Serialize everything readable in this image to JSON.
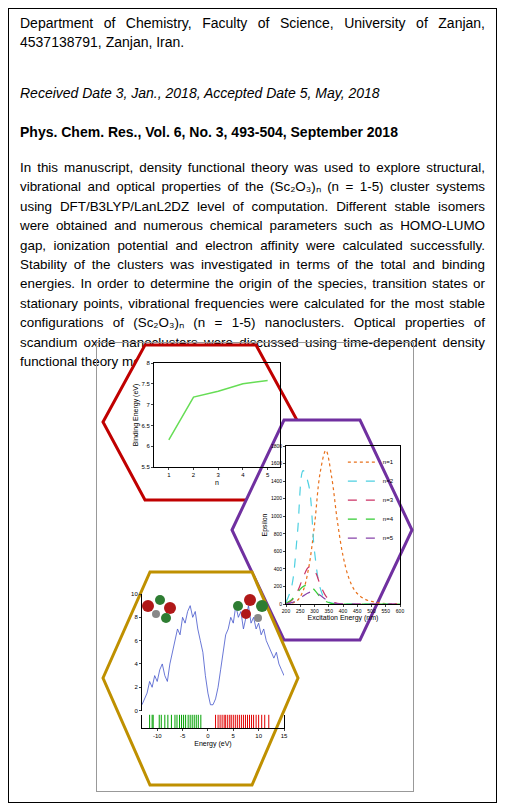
{
  "document": {
    "affiliation": "Department of Chemistry, Faculty of Science, University of Zanjan, 4537138791, Zanjan, Iran.",
    "dates": "Received Date 3, Jan., 2018, Accepted Date 5, May, 2018",
    "journal": "Phys. Chem. Res., Vol. 6, No. 3, 493-504, September 2018",
    "abstract": "In this manuscript, density functional theory was used to explore structural, vibrational and optical properties of the (Sc₂O₃)ₙ (n = 1-5) cluster systems using DFT/B3LYP/LanL2DZ level of computation. Different stable isomers were obtained and numerous chemical parameters such as HOMO-LUMO gap, ionization potential and electron affinity were calculated successfully. Stability of the clusters was investigated in terms of the total and binding energies. In order to determine the origin of the species, transition states or stationary points, vibrational frequencies were calculated for the most stable configurations of (Sc₂O₃)ₙ (n = 1-5) nanoclusters. Optical properties of scandium oxide nanoclusters were discussed  using time-dependent density functional theory methods."
  },
  "chart_data": [
    {
      "type": "line",
      "x_label": "n",
      "y_label": "Binding Energy (eV)",
      "x": [
        1,
        2,
        3,
        4,
        5
      ],
      "values": [
        6.15,
        7.18,
        7.32,
        7.5,
        7.58
      ],
      "color": "#66dd55",
      "marker": "none",
      "xlim": [
        0.4,
        5.5
      ],
      "xticks": [
        1,
        2,
        3,
        4,
        5
      ],
      "ylim": [
        5.5,
        8
      ],
      "yticks": [
        5.5,
        6,
        6.5,
        7,
        7.5,
        8
      ],
      "grid": false
    },
    {
      "type": "line",
      "x_label": "Excitation Energy (nm)",
      "y_label": "Epsilon",
      "x": [
        200,
        220,
        240,
        260,
        280,
        300,
        320,
        340,
        360,
        380,
        400,
        420,
        440,
        460,
        480,
        500,
        520,
        540,
        560,
        580,
        600
      ],
      "series": [
        {
          "name": "n=1",
          "color": "#e8711c",
          "line_style": "dot",
          "values": [
            0,
            10,
            40,
            150,
            420,
            900,
            1500,
            1750,
            1450,
            950,
            550,
            300,
            160,
            90,
            50,
            30,
            15,
            8,
            4,
            2,
            0
          ]
        },
        {
          "name": "n=2",
          "color": "#4dd0e1",
          "line_style": "dash",
          "values": [
            20,
            200,
            800,
            1520,
            1350,
            600,
            180,
            40,
            10,
            0,
            0,
            0,
            0,
            0,
            0,
            0,
            0,
            0,
            0,
            0,
            0
          ]
        },
        {
          "name": "n=3",
          "color": "#cc3366",
          "line_style": "dash",
          "values": [
            5,
            40,
            140,
            300,
            420,
            380,
            220,
            90,
            30,
            8,
            2,
            0,
            0,
            0,
            0,
            0,
            0,
            0,
            0,
            0,
            0
          ]
        },
        {
          "name": "n=4",
          "color": "#33cc33",
          "line_style": "dash",
          "values": [
            10,
            50,
            130,
            200,
            215,
            160,
            80,
            30,
            8,
            2,
            0,
            0,
            0,
            0,
            0,
            0,
            0,
            0,
            0,
            0,
            0
          ]
        },
        {
          "name": "n=5",
          "color": "#8844aa",
          "line_style": "dash",
          "values": [
            2,
            15,
            45,
            90,
            130,
            140,
            100,
            50,
            18,
            5,
            1,
            0,
            0,
            0,
            0,
            0,
            0,
            0,
            0,
            0,
            0
          ]
        }
      ],
      "xlim": [
        200,
        600
      ],
      "xticks": [
        200,
        250,
        300,
        350,
        400,
        450,
        500,
        550,
        600
      ],
      "ylim": [
        0,
        1800
      ],
      "yticks": [
        0,
        200,
        400,
        600,
        800,
        1000,
        1200,
        1400,
        1600,
        1800
      ],
      "legend": "top-right",
      "grid": false
    },
    {
      "type": "line",
      "x_label": "Energy (eV)",
      "x": [
        -13,
        -12.5,
        -12,
        -11.5,
        -11,
        -10.5,
        -10,
        -9.5,
        -9,
        -8.5,
        -8,
        -7.5,
        -7,
        -6.5,
        -6,
        -5.5,
        -5,
        -4.5,
        -4,
        -3.5,
        -3,
        -2.5,
        -2,
        -1.5,
        -1,
        -0.5,
        0,
        0.5,
        1,
        1.5,
        2,
        2.5,
        3,
        3.5,
        4,
        4.5,
        5,
        5.5,
        6,
        6.5,
        7,
        7.5,
        8,
        8.5,
        9,
        9.5,
        10,
        10.5,
        11,
        11.5,
        12,
        12.5,
        13,
        13.5,
        14,
        14.5,
        15
      ],
      "values": [
        0.5,
        1,
        1.5,
        2.5,
        2,
        3,
        2.5,
        3.5,
        4,
        3,
        2.5,
        4,
        5,
        6,
        7,
        6.5,
        8,
        7.5,
        8.5,
        9,
        8,
        8.5,
        7,
        6,
        5,
        3,
        1.5,
        0.5,
        0.5,
        1,
        2,
        3.5,
        5,
        6.5,
        7,
        8,
        7.5,
        9,
        8,
        8.5,
        7,
        8,
        9,
        7.5,
        8,
        7,
        7.5,
        6.5,
        7,
        6,
        5.5,
        5,
        4.5,
        5,
        4,
        3.5,
        3
      ],
      "color": "#4455cc",
      "levels": [
        {
          "color": "#00a000",
          "values": [
            -11.5,
            -11,
            -10.8,
            -9.6,
            -9.2,
            -8.5,
            -7.9,
            -7.2,
            -6.5,
            -6.1,
            -5.6,
            -5.2,
            -4.8,
            -4.4,
            -3.9,
            -3.5,
            -3.1,
            -2.7,
            -2.3,
            -1.9,
            -1.4
          ]
        },
        {
          "color": "#e00000",
          "values": [
            1.5,
            2,
            2.4,
            2.8,
            3.2,
            3.5,
            3.9,
            4.3,
            4.6,
            5,
            5.4,
            5.8,
            6.2,
            6.6,
            7,
            7.4,
            7.8,
            8.2,
            8.6,
            9,
            9.5,
            10,
            10.6,
            11.2,
            12
          ]
        }
      ],
      "xlim": [
        -13,
        15
      ],
      "xticks": [
        -10,
        -5,
        0,
        5,
        10,
        15
      ],
      "ylim": [
        0,
        10
      ],
      "yticks": [
        0,
        2,
        4,
        6,
        8,
        10
      ],
      "grid": false
    }
  ]
}
